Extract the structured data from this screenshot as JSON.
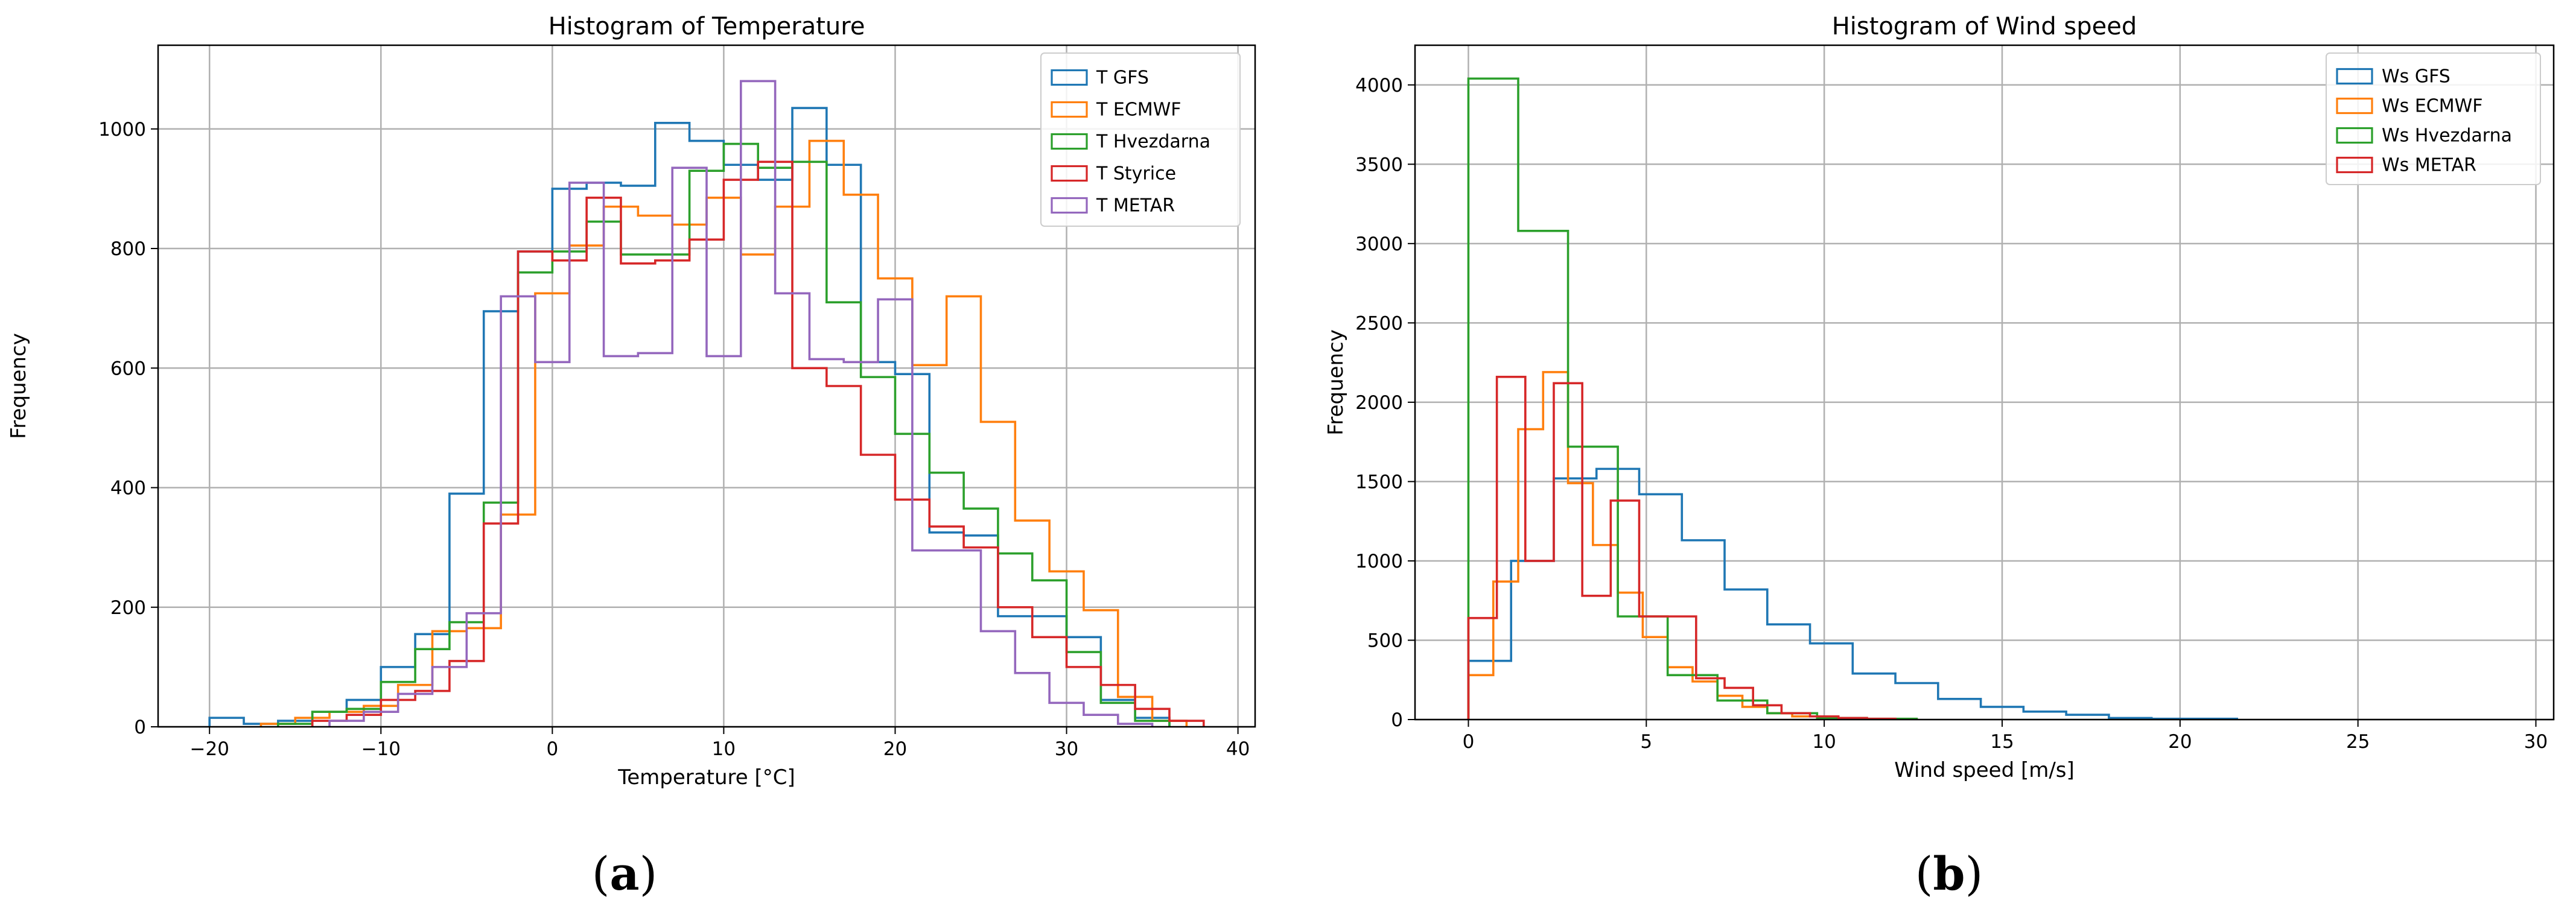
{
  "chart_data": [
    {
      "type": "histogram",
      "caption": "a",
      "title": "Histogram of Temperature",
      "xlabel": "Temperature [°C]",
      "ylabel": "Frequency",
      "xlim": [
        -23,
        41
      ],
      "ylim": [
        0,
        1140
      ],
      "xticks": [
        -20,
        -10,
        0,
        10,
        20,
        30,
        40
      ],
      "yticks": [
        0,
        200,
        400,
        600,
        800,
        1000
      ],
      "grid": true,
      "legend_position": "top-right",
      "series": [
        {
          "name": "T GFS",
          "color": "#1f77b4",
          "edges": [
            -20,
            -18,
            -16,
            -14,
            -12,
            -10,
            -8,
            -6,
            -4,
            -2,
            0,
            2,
            4,
            6,
            8,
            10,
            12,
            14,
            16,
            18,
            20,
            22,
            24,
            26,
            28,
            30,
            32,
            34,
            36
          ],
          "values": [
            15,
            5,
            10,
            25,
            45,
            100,
            155,
            390,
            695,
            795,
            900,
            910,
            905,
            1010,
            980,
            940,
            915,
            1035,
            940,
            610,
            590,
            325,
            320,
            185,
            185,
            150,
            45,
            15
          ]
        },
        {
          "name": "T ECMWF",
          "color": "#ff7f0e",
          "edges": [
            -17,
            -15,
            -13,
            -11,
            -9,
            -7,
            -5,
            -3,
            -1,
            1,
            3,
            5,
            7,
            9,
            11,
            13,
            15,
            17,
            19,
            21,
            23,
            25,
            27,
            29,
            31,
            33,
            35,
            37
          ],
          "values": [
            5,
            15,
            25,
            35,
            70,
            160,
            165,
            355,
            725,
            805,
            870,
            855,
            840,
            885,
            790,
            870,
            980,
            890,
            750,
            605,
            720,
            510,
            345,
            260,
            195,
            50,
            10
          ]
        },
        {
          "name": "T Hvezdarna",
          "color": "#2ca02c",
          "edges": [
            -16,
            -14,
            -12,
            -10,
            -8,
            -6,
            -4,
            -2,
            0,
            2,
            4,
            6,
            8,
            10,
            12,
            14,
            16,
            18,
            20,
            22,
            24,
            26,
            28,
            30,
            32,
            34,
            36
          ],
          "values": [
            5,
            25,
            30,
            75,
            130,
            175,
            375,
            760,
            795,
            845,
            790,
            790,
            930,
            975,
            935,
            945,
            710,
            585,
            490,
            425,
            365,
            290,
            245,
            125,
            40,
            10
          ]
        },
        {
          "name": "T Styrice",
          "color": "#d62728",
          "edges": [
            -14,
            -12,
            -10,
            -8,
            -6,
            -4,
            -2,
            0,
            2,
            4,
            6,
            8,
            10,
            12,
            14,
            16,
            18,
            20,
            22,
            24,
            26,
            28,
            30,
            32,
            34,
            36,
            38
          ],
          "values": [
            10,
            20,
            45,
            60,
            110,
            340,
            795,
            780,
            885,
            775,
            780,
            815,
            915,
            945,
            600,
            570,
            455,
            380,
            335,
            300,
            200,
            150,
            100,
            70,
            30,
            10
          ]
        },
        {
          "name": "T METAR",
          "color": "#9467bd",
          "edges": [
            -13,
            -11,
            -9,
            -7,
            -5,
            -3,
            -1,
            1,
            3,
            5,
            7,
            9,
            11,
            13,
            15,
            17,
            19,
            21,
            23,
            25,
            27,
            29,
            31,
            33,
            35
          ],
          "values": [
            10,
            25,
            55,
            100,
            190,
            720,
            610,
            910,
            620,
            625,
            935,
            620,
            1080,
            725,
            615,
            610,
            715,
            295,
            295,
            160,
            90,
            40,
            20,
            5
          ]
        }
      ]
    },
    {
      "type": "histogram",
      "caption": "b",
      "title": "Histogram of Wind speed",
      "xlabel": "Wind speed [m/s]",
      "ylabel": "Frequency",
      "xlim": [
        -1.5,
        30.5
      ],
      "ylim": [
        0,
        4250
      ],
      "xticks": [
        0,
        5,
        10,
        15,
        20,
        25,
        30
      ],
      "yticks": [
        0,
        500,
        1000,
        1500,
        2000,
        2500,
        3000,
        3500,
        4000
      ],
      "grid": true,
      "legend_position": "top-right",
      "series": [
        {
          "name": "Ws GFS",
          "color": "#1f77b4",
          "edges": [
            0,
            1.2,
            2.4,
            3.6,
            4.8,
            6.0,
            7.2,
            8.4,
            9.6,
            10.8,
            12.0,
            13.2,
            14.4,
            15.6,
            16.8,
            18.0,
            19.2,
            20.4,
            21.6
          ],
          "values": [
            370,
            1000,
            1520,
            1580,
            1420,
            1130,
            820,
            600,
            480,
            290,
            230,
            130,
            80,
            50,
            30,
            10,
            5,
            5
          ]
        },
        {
          "name": "Ws ECMWF",
          "color": "#ff7f0e",
          "edges": [
            0,
            0.7,
            1.4,
            2.1,
            2.8,
            3.5,
            4.2,
            4.9,
            5.6,
            6.3,
            7.0,
            7.7,
            8.4,
            9.1,
            9.8,
            10.5
          ],
          "values": [
            280,
            870,
            1830,
            2190,
            1490,
            1100,
            800,
            520,
            330,
            240,
            150,
            80,
            40,
            20,
            10
          ]
        },
        {
          "name": "Ws Hvezdarna",
          "color": "#2ca02c",
          "edges": [
            0,
            1.4,
            2.8,
            4.2,
            5.6,
            7.0,
            8.4,
            9.8,
            11.2,
            12.6
          ],
          "values": [
            4040,
            3080,
            1720,
            650,
            280,
            120,
            40,
            10,
            5
          ]
        },
        {
          "name": "Ws METAR",
          "color": "#d62728",
          "edges": [
            0,
            0.8,
            1.6,
            2.4,
            3.2,
            4.0,
            4.8,
            5.6,
            6.4,
            7.2,
            8.0,
            8.8,
            9.6,
            10.4,
            11.2,
            12.0
          ],
          "values": [
            640,
            2160,
            1000,
            2120,
            780,
            1380,
            650,
            650,
            260,
            200,
            90,
            40,
            20,
            10,
            5
          ]
        }
      ]
    }
  ]
}
